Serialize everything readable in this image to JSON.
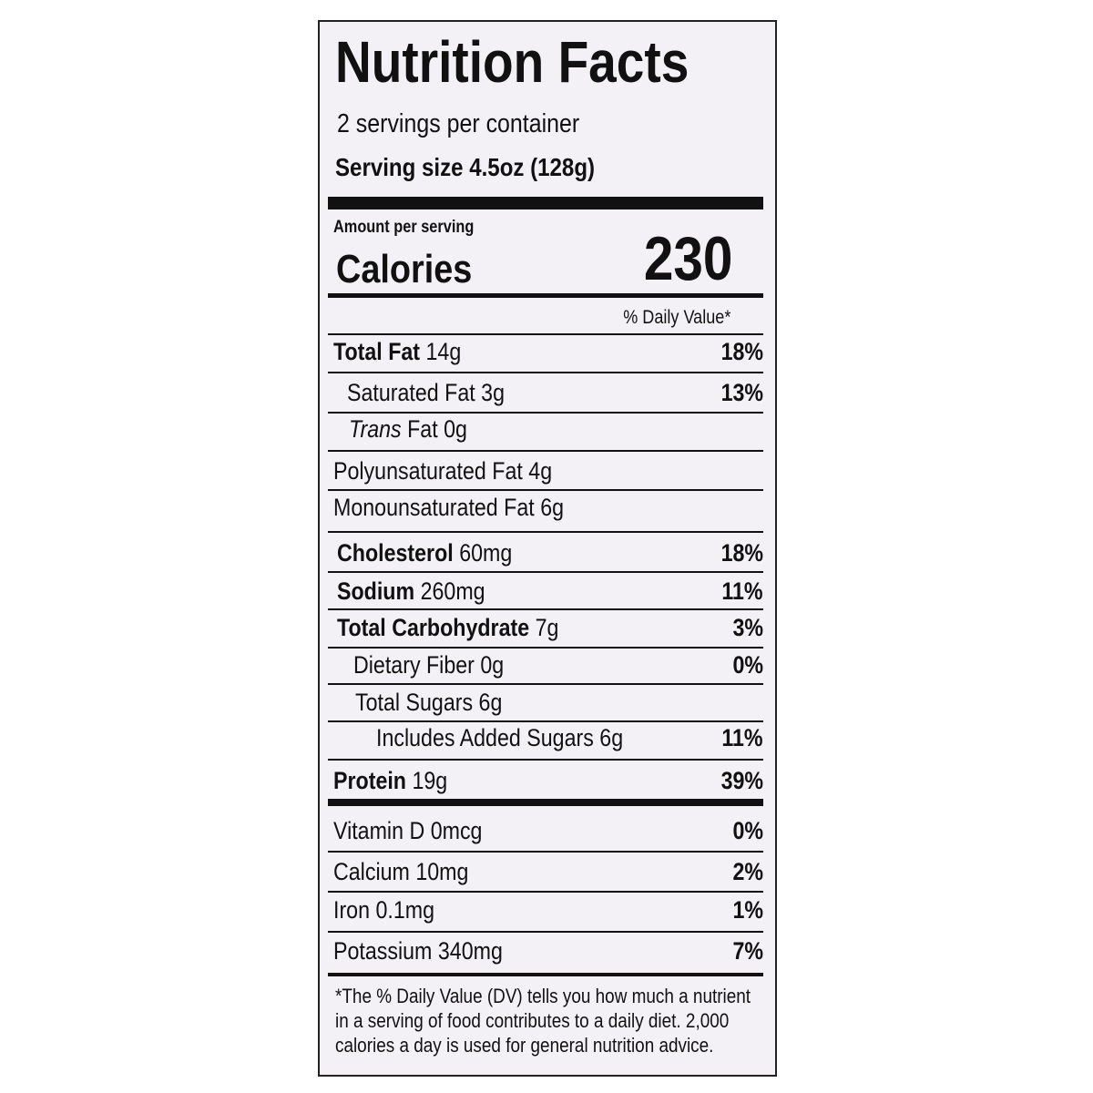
{
  "header": {
    "title": "Nutrition Facts",
    "servings": "2 servings per container",
    "serving_size_label": "Serving size",
    "serving_size": "4.5oz (128g)"
  },
  "calories": {
    "amount_label": "Amount per serving",
    "label": "Calories",
    "value": "230"
  },
  "dv_header": "% Daily Value*",
  "nutrients": [
    {
      "name": "Total Fat",
      "amount": "14g",
      "dv": "18%"
    },
    {
      "name": "Saturated Fat",
      "amount": "3g",
      "dv": "13%"
    },
    {
      "prefix": "Trans",
      "name": "Fat",
      "amount": "0g"
    },
    {
      "name": "Polyunsaturated Fat",
      "amount": "4g"
    },
    {
      "name": "Monounsaturated Fat",
      "amount": "6g"
    },
    {
      "name": "Cholesterol",
      "amount": "60mg",
      "dv": "18%"
    },
    {
      "name": "Sodium",
      "amount": "260mg",
      "dv": "11%"
    },
    {
      "name": "Total Carbohydrate",
      "amount": "7g",
      "dv": "3%"
    },
    {
      "name": "Dietary Fiber",
      "amount": "0g",
      "dv": "0%"
    },
    {
      "name": "Total Sugars",
      "amount": "6g"
    },
    {
      "name": "Includes Added Sugars",
      "amount": "6g",
      "dv": "11%"
    },
    {
      "name": "Protein",
      "amount": "19g",
      "dv": "39%"
    }
  ],
  "vitamins": [
    {
      "name": "Vitamin D",
      "amount": "0mcg",
      "dv": "0%"
    },
    {
      "name": "Calcium",
      "amount": "10mg",
      "dv": "2%"
    },
    {
      "name": "Iron",
      "amount": "0.1mg",
      "dv": "1%"
    },
    {
      "name": "Potassium",
      "amount": "340mg",
      "dv": "7%"
    }
  ],
  "footnote": [
    "*The % Daily Value (DV) tells you how much a nutrient",
    "in a serving of food contributes to a daily diet. 2,000",
    "calories a day is used for general nutrition advice."
  ]
}
